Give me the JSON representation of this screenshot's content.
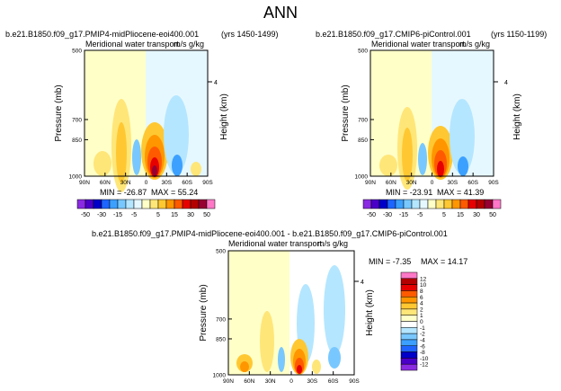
{
  "page": {
    "title": "ANN"
  },
  "chart_data": [
    {
      "type": "heatmap",
      "case": "b.e21.B1850.f09_g17.PMIP4-midPliocene-eoi400.001",
      "years": "(yrs 1450-1499)",
      "plot_title": "Meridional water transport",
      "units": "m/s g/kg",
      "ylabel": "Pressure (mb)",
      "right_label": "Height (km)",
      "right_tick": "4",
      "x_ticks": [
        "90N",
        "60N",
        "30N",
        "0",
        "30S",
        "60S",
        "90S"
      ],
      "y_ticks": [
        "500",
        "700",
        "850",
        "1000"
      ],
      "min_text": "MIN = -26.87",
      "max_text": "MAX = 55.24",
      "min": -26.87,
      "max": 55.24,
      "colorbar_labels": [
        "-50",
        "-30",
        "-15",
        "-5",
        "5",
        "15",
        "30",
        "50"
      ]
    },
    {
      "type": "heatmap",
      "case": "b.e21.B1850.f09_g17.CMIP6-piControl.001",
      "years": "(yrs 1150-1199)",
      "plot_title": "Meridional water transport",
      "units": "m/s g/kg",
      "ylabel": "Pressure (mb)",
      "right_label": "Height (km)",
      "right_tick": "4",
      "x_ticks": [
        "90N",
        "60N",
        "30N",
        "0",
        "30S",
        "60S",
        "90S"
      ],
      "y_ticks": [
        "500",
        "700",
        "850",
        "1000"
      ],
      "min_text": "MIN = -23.91",
      "max_text": "MAX = 41.39",
      "min": -23.91,
      "max": 41.39,
      "colorbar_labels": [
        "-50",
        "-30",
        "-15",
        "-5",
        "5",
        "15",
        "30",
        "50"
      ]
    },
    {
      "type": "heatmap",
      "title": "b.e21.B1850.f09_g17.PMIP4-midPliocene-eoi400.001 - b.e21.B1850.f09_g17.CMIP6-piControl.001",
      "plot_title": "Meridional water transport",
      "units": "m/s g/kg",
      "ylabel": "Pressure (mb)",
      "right_label": "Height (km)",
      "right_tick": "4",
      "x_ticks": [
        "90N",
        "60N",
        "30N",
        "0",
        "30S",
        "60S",
        "90S"
      ],
      "y_ticks": [
        "500",
        "700",
        "850",
        "1000"
      ],
      "min_text": "MIN = -7.35",
      "max_text": "MAX = 14.17",
      "min": -7.35,
      "max": 14.17,
      "colorbar_labels": [
        "12",
        "10",
        "8",
        "6",
        "4",
        "2",
        "1",
        "0",
        "-1",
        "-2",
        "-4",
        "-6",
        "-8",
        "-10",
        "-12"
      ]
    }
  ],
  "colors": {
    "top_scale": [
      "#8a2be2",
      "#4b00c8",
      "#0000c8",
      "#1e64ff",
      "#3ca0ff",
      "#78c8ff",
      "#b4e6ff",
      "#e6f8ff",
      "#ffffc8",
      "#ffe678",
      "#ffc832",
      "#ff9600",
      "#ff5a00",
      "#e60000",
      "#b40000",
      "#960032",
      "#ff78c8"
    ],
    "diff_scale": [
      "#ff78c8",
      "#b40000",
      "#e60000",
      "#ff5a00",
      "#ff9600",
      "#ffc832",
      "#ffe678",
      "#ffffc8",
      "#ffffff",
      "#b4e6ff",
      "#78c8ff",
      "#3ca0ff",
      "#1e64ff",
      "#0000c8",
      "#4b00c8",
      "#8a2be2"
    ]
  }
}
